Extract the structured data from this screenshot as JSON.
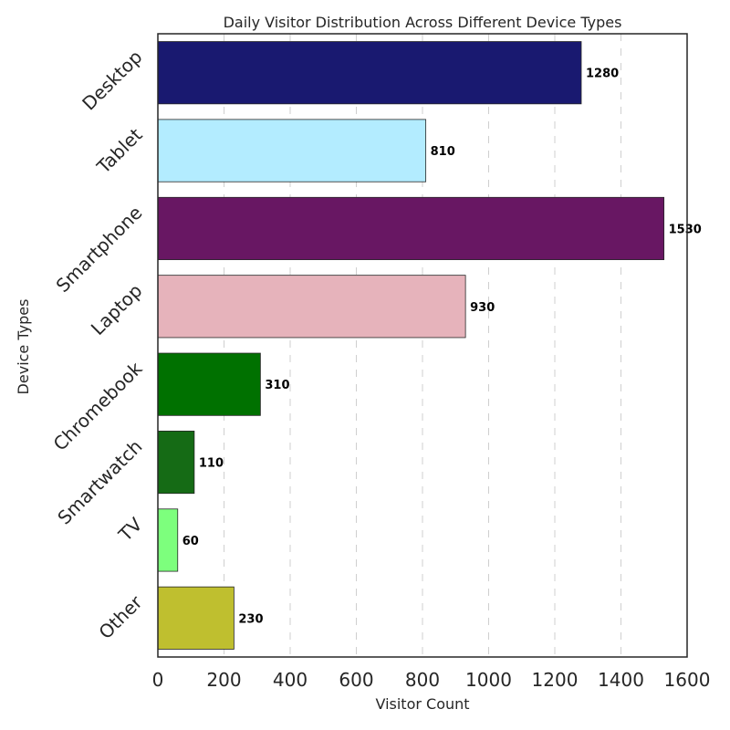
{
  "chart_data": {
    "type": "bar",
    "orientation": "horizontal",
    "title": "Daily Visitor Distribution Across Different Device Types",
    "xlabel": "Visitor Count",
    "ylabel": "Device Types",
    "xlim": [
      0,
      1600
    ],
    "xticks": [
      0,
      200,
      400,
      600,
      800,
      1000,
      1200,
      1400,
      1600
    ],
    "grid": "vertical-dashed",
    "categories": [
      "Desktop",
      "Tablet",
      "Smartphone",
      "Laptop",
      "Chromebook",
      "Smartwatch",
      "TV",
      "Other"
    ],
    "values": [
      1280,
      810,
      1530,
      930,
      310,
      110,
      60,
      230
    ],
    "colors": [
      "#191970",
      "#b3ecff",
      "#681763",
      "#e6b3bb",
      "#007100",
      "#156b15",
      "#7dff7d",
      "#bfbf2f"
    ]
  }
}
